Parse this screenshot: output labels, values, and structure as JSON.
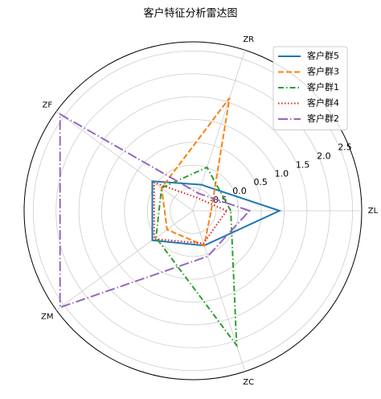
{
  "chart_data": {
    "type": "radar",
    "title": "客户特征分析雷达图",
    "categories": [
      "ZL",
      "ZR",
      "ZF",
      "ZM",
      "ZC"
    ],
    "ylim": [
      -1,
      2.7
    ],
    "yticks": [
      -0.5,
      {
        "value": 0,
        "label": "0.0"
      },
      0.5,
      {
        "value": 1,
        "label": "1.0"
      },
      1.5,
      {
        "value": 2,
        "label": "2.0"
      },
      2.5
    ],
    "grid": true,
    "legend": "upper right",
    "series": [
      {
        "name": "客户群5",
        "color": "#1f77b4",
        "style": "solid",
        "values": [
          0.9,
          -0.4,
          0.1,
          0.1,
          -0.2
        ]
      },
      {
        "name": "客户群3",
        "color": "#ff7f0e",
        "style": "dashed",
        "values": [
          -0.6,
          1.6,
          -0.15,
          -0.3,
          -0.2
        ]
      },
      {
        "name": "客户群1",
        "color": "#2ca02c",
        "style": "dashdot",
        "values": [
          -0.17,
          0.0,
          -0.15,
          0.0,
          2.1
        ]
      },
      {
        "name": "客户群4",
        "color": "#d62728",
        "style": "dotted",
        "values": [
          -0.26,
          -0.7,
          0.05,
          0.05,
          -0.25
        ]
      },
      {
        "name": "客户群2",
        "color": "#9467bd",
        "style": "longdashdot",
        "values": [
          0.24,
          -0.6,
          2.6,
          2.6,
          0.05
        ]
      }
    ]
  }
}
